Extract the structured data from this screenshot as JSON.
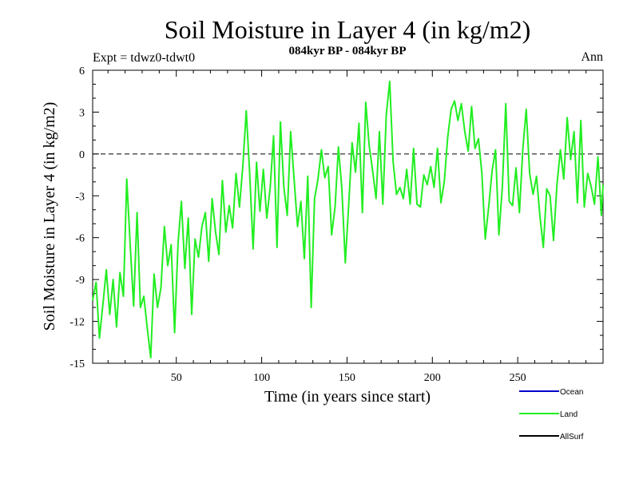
{
  "chart_data": {
    "type": "line",
    "title": "Soil Moisture in Layer 4 (in kg/m2)",
    "subtitle": "084kyr BP - 084kyr BP",
    "experiment": "Expt = tdwz0-tdwt0",
    "period": "Ann",
    "xlabel": "Time (in years since start)",
    "ylabel": "Soil Moisture in Layer 4 (in kg/m2)",
    "xlim": [
      1,
      300
    ],
    "ylim": [
      -15,
      6
    ],
    "xticks": [
      50,
      100,
      150,
      200,
      250
    ],
    "yticks": [
      6,
      3,
      0,
      -3,
      -6,
      -9,
      -12,
      -15
    ],
    "reference_line": {
      "y": 0,
      "style": "dashed"
    },
    "legend": [
      {
        "name": "Ocean",
        "color": "#0000cc"
      },
      {
        "name": "Land",
        "color": "#22ee22"
      },
      {
        "name": "AllSurf",
        "color": "#000000"
      }
    ],
    "series": [
      {
        "name": "Land",
        "color": "#22ee22",
        "x": [
          1,
          3,
          5,
          7,
          9,
          11,
          13,
          15,
          17,
          19,
          21,
          23,
          25,
          27,
          29,
          31,
          33,
          35,
          37,
          39,
          41,
          43,
          45,
          47,
          49,
          51,
          53,
          55,
          57,
          59,
          61,
          63,
          65,
          67,
          69,
          71,
          73,
          75,
          77,
          79,
          81,
          83,
          85,
          87,
          89,
          91,
          93,
          95,
          97,
          99,
          101,
          103,
          105,
          107,
          109,
          111,
          113,
          115,
          117,
          119,
          121,
          123,
          125,
          127,
          129,
          131,
          133,
          135,
          137,
          139,
          141,
          143,
          145,
          147,
          149,
          151,
          153,
          155,
          157,
          159,
          161,
          163,
          165,
          167,
          169,
          171,
          173,
          175,
          177,
          179,
          181,
          183,
          185,
          187,
          189,
          191,
          193,
          195,
          197,
          199,
          201,
          203,
          205,
          207,
          209,
          211,
          213,
          215,
          217,
          219,
          221,
          223,
          225,
          227,
          229,
          231,
          233,
          235,
          237,
          239,
          241,
          243,
          245,
          247,
          249,
          251,
          253,
          255,
          257,
          259,
          261,
          263,
          265,
          267,
          269,
          271,
          273,
          275,
          277,
          279,
          281,
          283,
          285,
          287,
          289,
          291,
          293,
          295,
          297,
          299,
          300
        ],
        "values": [
          -10.5,
          -9.2,
          -13.2,
          -10.8,
          -8.3,
          -11.5,
          -9.0,
          -12.4,
          -8.5,
          -10.2,
          -1.8,
          -6.5,
          -10.9,
          -4.2,
          -11.0,
          -10.2,
          -12.5,
          -14.6,
          -8.6,
          -11.0,
          -9.6,
          -5.2,
          -8.0,
          -6.5,
          -12.8,
          -6.4,
          -3.4,
          -8.2,
          -4.6,
          -11.5,
          -6.1,
          -7.4,
          -5.2,
          -4.2,
          -7.7,
          -3.2,
          -5.6,
          -7.2,
          -1.9,
          -5.6,
          -3.7,
          -5.3,
          -1.4,
          -3.8,
          -0.8,
          3.1,
          -1.4,
          -6.8,
          -0.6,
          -4.1,
          -1.1,
          -4.6,
          -2.4,
          1.3,
          -6.7,
          2.3,
          -2.4,
          -4.4,
          1.6,
          -1.8,
          -5.2,
          -3.4,
          -7.5,
          -1.6,
          -11.0,
          -3.2,
          -1.8,
          0.3,
          -1.7,
          -0.9,
          -5.8,
          -3.8,
          0.5,
          -2.5,
          -7.8,
          -3.6,
          0.8,
          -1.3,
          2.2,
          -4.2,
          3.7,
          0.6,
          -1.2,
          -3.2,
          1.6,
          -3.6,
          2.8,
          5.2,
          -0.5,
          -2.9,
          -2.4,
          -3.2,
          -1.1,
          -3.6,
          0.4,
          -3.6,
          -3.8,
          -1.5,
          -2.2,
          -0.9,
          -2.4,
          0.4,
          -3.5,
          -2.0,
          1.2,
          3.2,
          3.8,
          2.4,
          3.6,
          1.6,
          0.2,
          3.4,
          0.4,
          1.1,
          -1.4,
          -6.1,
          -3.8,
          -1.2,
          0.3,
          -5.8,
          -2.4,
          3.6,
          -3.4,
          -3.7,
          -1.0,
          -4.2,
          0.4,
          3.2,
          -1.4,
          -2.9,
          -1.6,
          -4.4,
          -6.7,
          -2.5,
          -3.0,
          -6.2,
          -2.2,
          0.3,
          -1.8,
          2.6,
          -0.4,
          1.6,
          -3.5,
          2.4,
          -3.8,
          -1.4,
          -2.3,
          -3.6,
          -0.2,
          -4.4,
          -2.2
        ]
      }
    ]
  }
}
